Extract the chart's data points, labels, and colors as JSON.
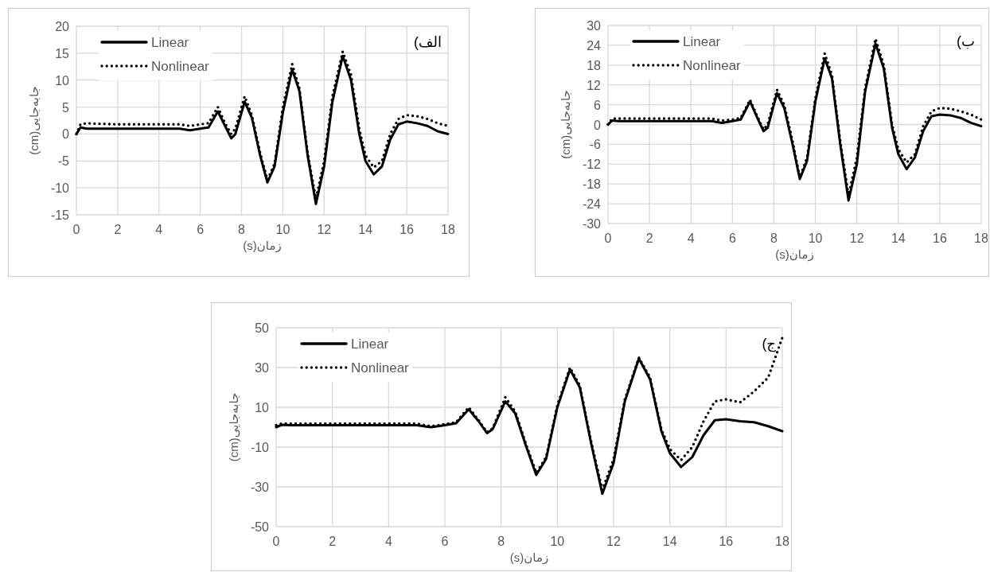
{
  "chart_data": [
    {
      "type": "line",
      "xlabel": "زمان(s)",
      "ylabel": "جابه‌جایی(cm)",
      "annotations": [
        "الف)"
      ],
      "grid": true,
      "legend": "top left",
      "xlim": [
        0,
        18
      ],
      "xticks": [
        0,
        2,
        4,
        6,
        8,
        10,
        12,
        14,
        16,
        18
      ],
      "ylim": [
        -15,
        20
      ],
      "yticks": [
        -15,
        -10,
        -5,
        0,
        5,
        10,
        15,
        20
      ],
      "x": [
        0,
        0.2,
        0.5,
        1,
        2,
        3,
        4,
        5,
        5.5,
        6,
        6.4,
        6.85,
        7.2,
        7.5,
        7.7,
        8.15,
        8.5,
        8.9,
        9.25,
        9.6,
        10,
        10.45,
        10.8,
        11.2,
        11.6,
        12,
        12.4,
        12.9,
        13.3,
        13.7,
        14,
        14.4,
        14.8,
        15.2,
        15.6,
        16,
        16.5,
        17,
        17.5,
        18
      ],
      "series": [
        {
          "name": "Linear",
          "color": "#000000",
          "line_style": "solid",
          "values": [
            0,
            1.2,
            1,
            1,
            1,
            1,
            1,
            1,
            0.7,
            1,
            1.2,
            4.2,
            1.5,
            -0.8,
            0,
            6,
            3,
            -4,
            -9,
            -6,
            4,
            12,
            8,
            -4,
            -13,
            -6,
            6,
            14.5,
            10,
            0,
            -5,
            -7.5,
            -6,
            -1,
            1.8,
            2.3,
            2,
            1.5,
            0.5,
            0
          ]
        },
        {
          "name": "Nonlinear",
          "color": "#000000",
          "line_style": "dotted",
          "values": [
            0,
            1.8,
            2,
            1.9,
            1.8,
            1.8,
            1.8,
            1.8,
            1.5,
            1.8,
            2,
            5,
            2,
            0,
            1,
            7,
            3.5,
            -3.5,
            -8.5,
            -5.5,
            5,
            13,
            8.5,
            -3.5,
            -12,
            -5,
            7,
            15.3,
            11,
            1,
            -4,
            -6.2,
            -5,
            0,
            2.8,
            3.5,
            3.3,
            2.8,
            2,
            1.5
          ]
        }
      ]
    },
    {
      "type": "line",
      "xlabel": "زمان(s)",
      "ylabel": "جابه‌جایی(cm)",
      "annotations": [
        "ب)"
      ],
      "grid": true,
      "legend": "top left",
      "xlim": [
        0,
        18
      ],
      "xticks": [
        0,
        2,
        4,
        6,
        8,
        10,
        12,
        14,
        16,
        18
      ],
      "ylim": [
        -30,
        30
      ],
      "yticks": [
        -30,
        -24,
        -18,
        -12,
        -6,
        0,
        6,
        12,
        18,
        24,
        30
      ],
      "x": [
        0,
        0.2,
        0.5,
        1,
        2,
        3,
        4,
        5,
        5.5,
        6,
        6.4,
        6.85,
        7.2,
        7.5,
        7.7,
        8.15,
        8.5,
        8.9,
        9.25,
        9.6,
        10,
        10.45,
        10.8,
        11.2,
        11.6,
        12,
        12.4,
        12.9,
        13.3,
        13.7,
        14,
        14.4,
        14.8,
        15.2,
        15.6,
        16,
        16.5,
        17,
        17.5,
        18
      ],
      "series": [
        {
          "name": "Linear",
          "color": "#000000",
          "line_style": "solid",
          "values": [
            0,
            1.2,
            1,
            1,
            1,
            1,
            1,
            1,
            0.5,
            1,
            1.5,
            7,
            2,
            -2,
            -1,
            9.5,
            5,
            -6,
            -16.5,
            -11,
            7,
            20,
            14,
            -6,
            -23,
            -12,
            10,
            24.5,
            17,
            -1,
            -9,
            -13.5,
            -10,
            -2,
            2.5,
            3,
            2.8,
            2,
            0.5,
            -0.5
          ]
        },
        {
          "name": "Nonlinear",
          "color": "#000000",
          "line_style": "dotted",
          "values": [
            0,
            1.8,
            1.8,
            1.8,
            1.8,
            1.8,
            1.8,
            1.8,
            1.2,
            1.5,
            2,
            7.5,
            2.5,
            -1.5,
            0,
            10.5,
            6,
            -5,
            -16,
            -10,
            8,
            21.5,
            15,
            -5,
            -21.5,
            -10,
            11,
            26,
            18,
            0,
            -7.5,
            -11.5,
            -9,
            -0.5,
            4,
            5,
            4.8,
            4,
            3,
            1.5
          ]
        }
      ]
    },
    {
      "type": "line",
      "xlabel": "زمان(s)",
      "ylabel": "جابه‌جایی(cm)",
      "annotations": [
        "ج)"
      ],
      "grid": true,
      "legend": "top left",
      "xlim": [
        0,
        18
      ],
      "xticks": [
        0,
        2,
        4,
        6,
        8,
        10,
        12,
        14,
        16,
        18
      ],
      "ylim": [
        -50,
        50
      ],
      "yticks": [
        -50,
        -30,
        -10,
        10,
        30,
        50
      ],
      "x": [
        0,
        0.2,
        0.5,
        1,
        2,
        3,
        4,
        5,
        5.5,
        6,
        6.4,
        6.85,
        7.2,
        7.5,
        7.7,
        8.15,
        8.5,
        8.9,
        9.25,
        9.6,
        10,
        10.45,
        10.8,
        11.2,
        11.6,
        12,
        12.4,
        12.9,
        13.3,
        13.7,
        14,
        14.4,
        14.8,
        15.2,
        15.6,
        16,
        16.5,
        17,
        17.5,
        18
      ],
      "series": [
        {
          "name": "Linear",
          "color": "#000000",
          "line_style": "solid",
          "values": [
            0,
            1.2,
            1,
            1,
            1,
            1,
            1,
            1,
            0,
            1,
            2,
            9,
            3,
            -3,
            -1,
            13,
            7,
            -10,
            -24,
            -16,
            10,
            29,
            20,
            -8,
            -33.5,
            -18,
            13,
            34.5,
            24,
            -2,
            -13,
            -20,
            -15,
            -4,
            3.5,
            4,
            3,
            2.5,
            0.5,
            -2
          ]
        },
        {
          "name": "Nonlinear",
          "color": "#000000",
          "line_style": "dotted",
          "values": [
            1,
            1.8,
            1.8,
            1.8,
            1.8,
            1.8,
            1.8,
            1.8,
            0.5,
            1.5,
            2.5,
            10,
            3.5,
            -2.5,
            -0.5,
            15,
            8,
            -9,
            -23,
            -15,
            11,
            30,
            21,
            -7,
            -31.5,
            -16,
            14,
            35,
            25,
            -1,
            -11,
            -16.5,
            -10,
            3,
            13,
            14,
            12.5,
            18,
            25,
            45
          ]
        }
      ]
    }
  ]
}
